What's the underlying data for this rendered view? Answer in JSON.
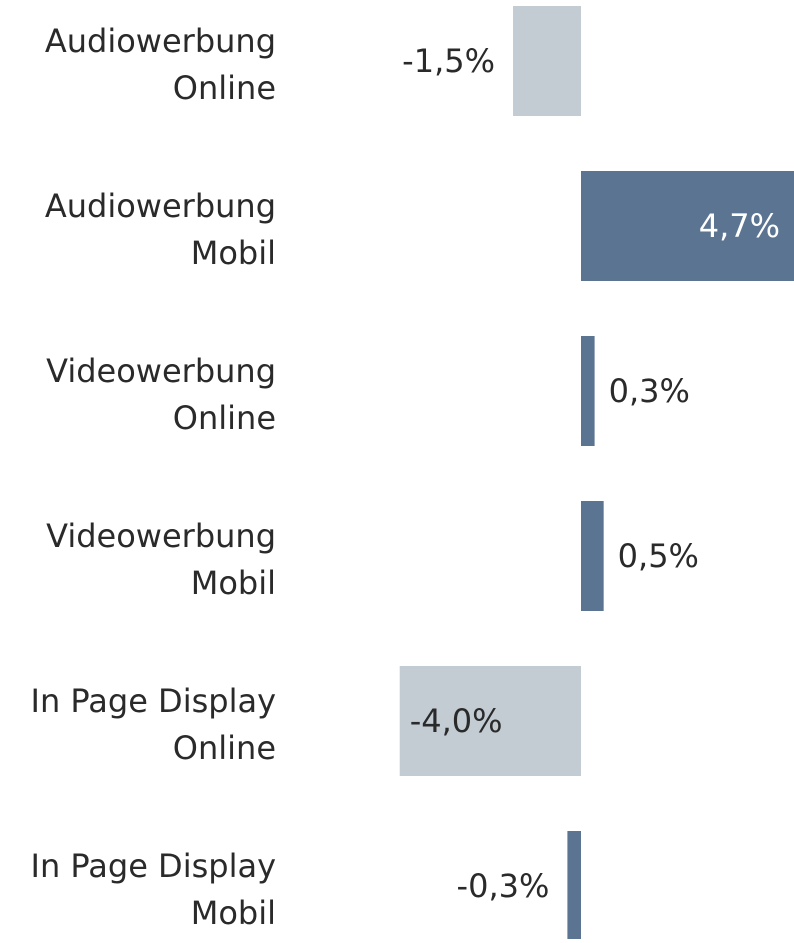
{
  "chart_data": {
    "type": "bar",
    "orientation": "horizontal",
    "categories": [
      [
        "Audiowerbung",
        "Online"
      ],
      [
        "Audiowerbung",
        "Mobil"
      ],
      [
        "Videowerbung",
        "Online"
      ],
      [
        "Videowerbung",
        "Mobil"
      ],
      [
        "In Page Display",
        "Online"
      ],
      [
        "In Page Display",
        "Mobil"
      ]
    ],
    "values": [
      -1.5,
      4.7,
      0.3,
      0.5,
      -4.0,
      -0.3
    ],
    "value_labels": [
      "-1,5%",
      "4,7%",
      "0,3%",
      "0,5%",
      "-4,0%",
      "-0,3%"
    ],
    "colors": [
      "#c3cbd3",
      "#5a7491",
      "#5a7491",
      "#5a7491",
      "#c3cbd3",
      "#5a7491"
    ]
  }
}
